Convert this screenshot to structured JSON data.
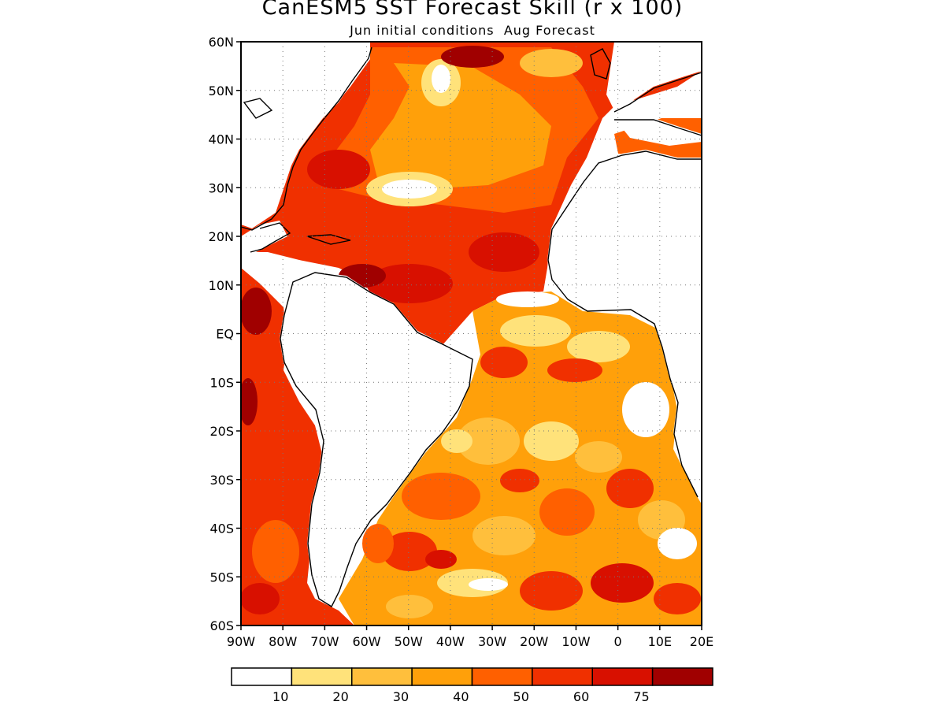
{
  "header": {
    "title": "CanESM5 SST Forecast Skill (r x 100)",
    "subtitle": "Jun initial conditions  Aug Forecast"
  },
  "map": {
    "lon_range": [
      -90,
      20
    ],
    "lat_range": [
      -60,
      60
    ],
    "lat_ticks": [
      {
        "value": 60,
        "label": "60N"
      },
      {
        "value": 50,
        "label": "50N"
      },
      {
        "value": 40,
        "label": "40N"
      },
      {
        "value": 30,
        "label": "30N"
      },
      {
        "value": 20,
        "label": "20N"
      },
      {
        "value": 10,
        "label": "10N"
      },
      {
        "value": 0,
        "label": "EQ"
      },
      {
        "value": -10,
        "label": "10S"
      },
      {
        "value": -20,
        "label": "20S"
      },
      {
        "value": -30,
        "label": "30S"
      },
      {
        "value": -40,
        "label": "40S"
      },
      {
        "value": -50,
        "label": "50S"
      },
      {
        "value": -60,
        "label": "60S"
      }
    ],
    "lon_ticks": [
      {
        "value": -90,
        "label": "90W"
      },
      {
        "value": -80,
        "label": "80W"
      },
      {
        "value": -70,
        "label": "70W"
      },
      {
        "value": -60,
        "label": "60W"
      },
      {
        "value": -50,
        "label": "50W"
      },
      {
        "value": -40,
        "label": "40W"
      },
      {
        "value": -30,
        "label": "30W"
      },
      {
        "value": -20,
        "label": "20W"
      },
      {
        "value": -10,
        "label": "10W"
      },
      {
        "value": 0,
        "label": "0"
      },
      {
        "value": 10,
        "label": "10E"
      },
      {
        "value": 20,
        "label": "20E"
      }
    ],
    "gridlines": "dotted"
  },
  "colorbar": {
    "colors": [
      "#ffffff",
      "#ffe27a",
      "#ffbf3c",
      "#ffa00a",
      "#ff6000",
      "#f03000",
      "#d81000",
      "#a00000"
    ],
    "labels": [
      "10",
      "20",
      "30",
      "40",
      "50",
      "60",
      "75"
    ]
  }
}
